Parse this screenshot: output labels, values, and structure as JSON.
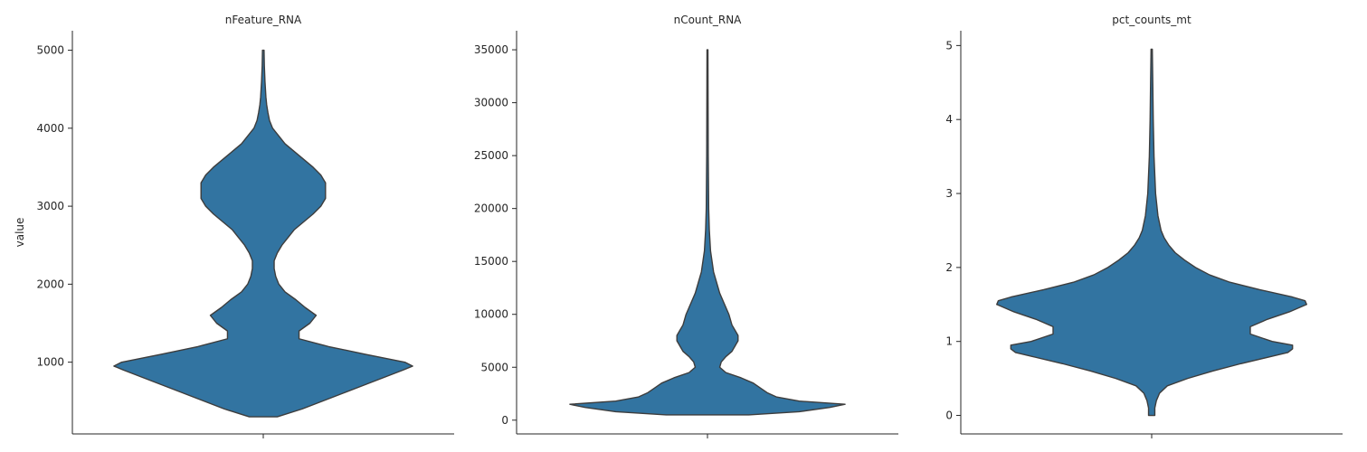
{
  "chart_data": [
    {
      "type": "violin",
      "title": "nFeature_RNA",
      "ylabel": "value",
      "xlabel": "",
      "ylim": [
        80,
        5250
      ],
      "yticks": [
        1000,
        2000,
        3000,
        4000,
        5000
      ],
      "color": "#3274a1",
      "edge_color": "#3d3d3d",
      "profile": [
        [
          300,
          0.09
        ],
        [
          400,
          0.25
        ],
        [
          500,
          0.38
        ],
        [
          600,
          0.51
        ],
        [
          700,
          0.64
        ],
        [
          800,
          0.77
        ],
        [
          900,
          0.9
        ],
        [
          950,
          0.96
        ],
        [
          1000,
          0.91
        ],
        [
          1100,
          0.66
        ],
        [
          1200,
          0.42
        ],
        [
          1300,
          0.23
        ],
        [
          1400,
          0.23
        ],
        [
          1500,
          0.3
        ],
        [
          1600,
          0.34
        ],
        [
          1700,
          0.27
        ],
        [
          1800,
          0.21
        ],
        [
          1900,
          0.14
        ],
        [
          2000,
          0.1
        ],
        [
          2100,
          0.08
        ],
        [
          2200,
          0.07
        ],
        [
          2300,
          0.07
        ],
        [
          2400,
          0.09
        ],
        [
          2500,
          0.12
        ],
        [
          2600,
          0.16
        ],
        [
          2700,
          0.2
        ],
        [
          2800,
          0.26
        ],
        [
          2900,
          0.32
        ],
        [
          3000,
          0.37
        ],
        [
          3100,
          0.4
        ],
        [
          3200,
          0.4
        ],
        [
          3300,
          0.4
        ],
        [
          3400,
          0.37
        ],
        [
          3500,
          0.32
        ],
        [
          3600,
          0.26
        ],
        [
          3700,
          0.2
        ],
        [
          3800,
          0.14
        ],
        [
          3900,
          0.1
        ],
        [
          4000,
          0.06
        ],
        [
          4100,
          0.04
        ],
        [
          4200,
          0.03
        ],
        [
          4300,
          0.022
        ],
        [
          4400,
          0.017
        ],
        [
          4500,
          0.014
        ],
        [
          4600,
          0.011
        ],
        [
          4700,
          0.009
        ],
        [
          4800,
          0.007
        ],
        [
          4900,
          0.006
        ],
        [
          5000,
          0.005
        ]
      ]
    },
    {
      "type": "violin",
      "title": "nCount_RNA",
      "ylabel": "",
      "xlabel": "",
      "ylim": [
        -1300,
        36800
      ],
      "yticks": [
        0,
        5000,
        10000,
        15000,
        20000,
        25000,
        30000,
        35000
      ],
      "color": "#3274a1",
      "edge_color": "#3d3d3d",
      "profile": [
        [
          500,
          0.27
        ],
        [
          800,
          0.6
        ],
        [
          1200,
          0.8
        ],
        [
          1500,
          0.9
        ],
        [
          1800,
          0.6
        ],
        [
          2200,
          0.45
        ],
        [
          2600,
          0.39
        ],
        [
          3000,
          0.35
        ],
        [
          3500,
          0.3
        ],
        [
          4000,
          0.22
        ],
        [
          4500,
          0.12
        ],
        [
          5000,
          0.08
        ],
        [
          5500,
          0.09
        ],
        [
          6000,
          0.12
        ],
        [
          6500,
          0.16
        ],
        [
          7000,
          0.18
        ],
        [
          7500,
          0.2
        ],
        [
          8000,
          0.2
        ],
        [
          8500,
          0.18
        ],
        [
          9000,
          0.16
        ],
        [
          10000,
          0.14
        ],
        [
          11000,
          0.11
        ],
        [
          12000,
          0.08
        ],
        [
          13000,
          0.06
        ],
        [
          14000,
          0.04
        ],
        [
          15000,
          0.03
        ],
        [
          16000,
          0.02
        ],
        [
          18000,
          0.012
        ],
        [
          20000,
          0.008
        ],
        [
          25000,
          0.005
        ],
        [
          30000,
          0.004
        ],
        [
          35000,
          0.003
        ]
      ]
    },
    {
      "type": "violin",
      "title": "pct_counts_mt",
      "ylabel": "",
      "xlabel": "",
      "ylim": [
        -0.25,
        5.2
      ],
      "yticks": [
        0,
        1,
        2,
        3,
        4,
        5
      ],
      "color": "#3274a1",
      "edge_color": "#3d3d3d",
      "profile": [
        [
          0,
          0.02
        ],
        [
          0.1,
          0.02
        ],
        [
          0.2,
          0.03
        ],
        [
          0.3,
          0.05
        ],
        [
          0.4,
          0.1
        ],
        [
          0.5,
          0.23
        ],
        [
          0.6,
          0.39
        ],
        [
          0.7,
          0.57
        ],
        [
          0.8,
          0.77
        ],
        [
          0.85,
          0.87
        ],
        [
          0.9,
          0.9
        ],
        [
          0.95,
          0.9
        ],
        [
          1.0,
          0.77
        ],
        [
          1.1,
          0.63
        ],
        [
          1.2,
          0.63
        ],
        [
          1.3,
          0.74
        ],
        [
          1.4,
          0.88
        ],
        [
          1.5,
          0.99
        ],
        [
          1.55,
          0.98
        ],
        [
          1.6,
          0.9
        ],
        [
          1.7,
          0.69
        ],
        [
          1.8,
          0.5
        ],
        [
          1.9,
          0.37
        ],
        [
          2.0,
          0.28
        ],
        [
          2.1,
          0.21
        ],
        [
          2.2,
          0.15
        ],
        [
          2.3,
          0.11
        ],
        [
          2.4,
          0.08
        ],
        [
          2.5,
          0.06
        ],
        [
          2.7,
          0.04
        ],
        [
          3.0,
          0.025
        ],
        [
          3.5,
          0.015
        ],
        [
          4.0,
          0.01
        ],
        [
          4.5,
          0.007
        ],
        [
          4.95,
          0.004
        ]
      ]
    }
  ]
}
